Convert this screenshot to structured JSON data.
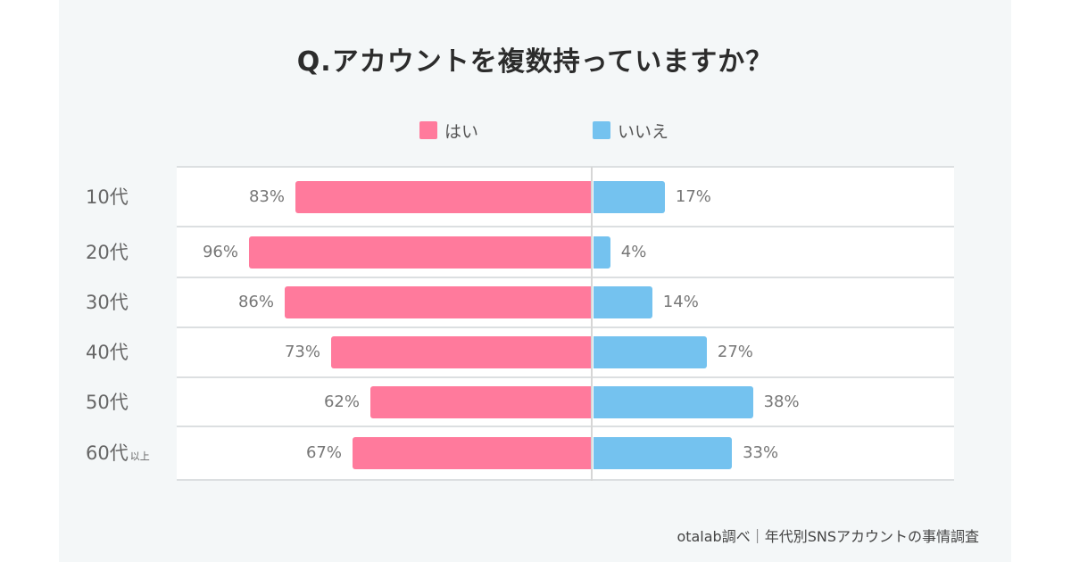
{
  "chart_data": {
    "type": "bar",
    "orientation": "horizontal-diverging",
    "title": "Q.アカウントを複数持っていますか？",
    "categories": [
      "10代",
      "20代",
      "30代",
      "40代",
      "50代",
      "60代"
    ],
    "category_suffixes": [
      "",
      "",
      "",
      "",
      "",
      "以上"
    ],
    "series": [
      {
        "name": "はい",
        "color": "#ff7a9c",
        "values": [
          83,
          96,
          86,
          73,
          62,
          67
        ],
        "labels": [
          "83%",
          "96%",
          "86%",
          "73%",
          "62%",
          "67%"
        ]
      },
      {
        "name": "いいえ",
        "color": "#74c2ef",
        "values": [
          17,
          4,
          14,
          27,
          38,
          33
        ],
        "labels": [
          "17%",
          "4%",
          "14%",
          "27%",
          "38%",
          "33%"
        ]
      }
    ],
    "unit": "%",
    "legend": "top-center",
    "grid": "horizontal row separators"
  },
  "source": "otalab調べ｜年代別SNSアカウントの事情調査"
}
